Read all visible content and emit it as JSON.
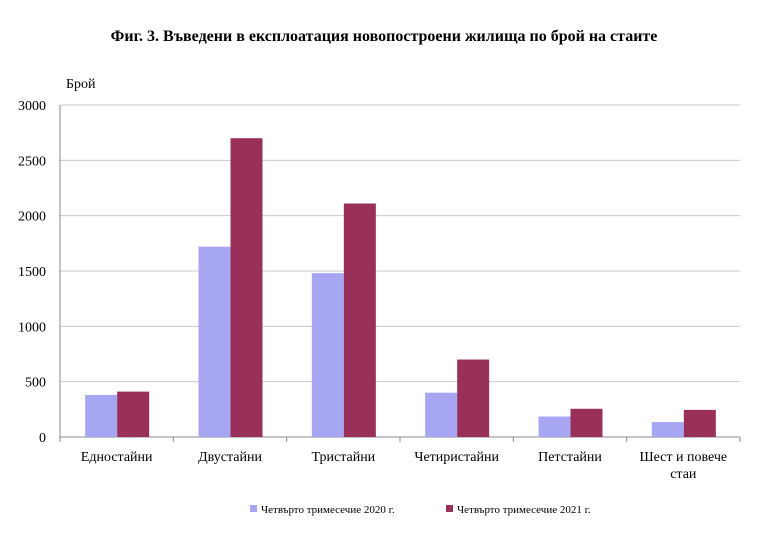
{
  "chart_data": {
    "type": "bar",
    "title": "Фиг. 3. Въведени в експлоатация новопостроени жилища по брой на стаите",
    "ylabel": "Брой",
    "xlabel": "",
    "ylim": [
      0,
      3000
    ],
    "yticks": [
      0,
      500,
      1000,
      1500,
      2000,
      2500,
      3000
    ],
    "grid": true,
    "legend_position": "bottom",
    "categories": [
      [
        "Едностайни"
      ],
      [
        "Двустайни"
      ],
      [
        "Тристайни"
      ],
      [
        "Четиристайни"
      ],
      [
        "Петстайни"
      ],
      [
        "Шест и повече",
        "стаи"
      ]
    ],
    "series": [
      {
        "name": "Четвърто тримесечие 2020 г.",
        "color": "#a6a6f2",
        "values": [
          380,
          1720,
          1480,
          400,
          185,
          135
        ]
      },
      {
        "name": "Четвърто тримесечие 2021 г.",
        "color": "#99305a",
        "values": [
          410,
          2700,
          2110,
          700,
          255,
          245
        ]
      }
    ]
  }
}
